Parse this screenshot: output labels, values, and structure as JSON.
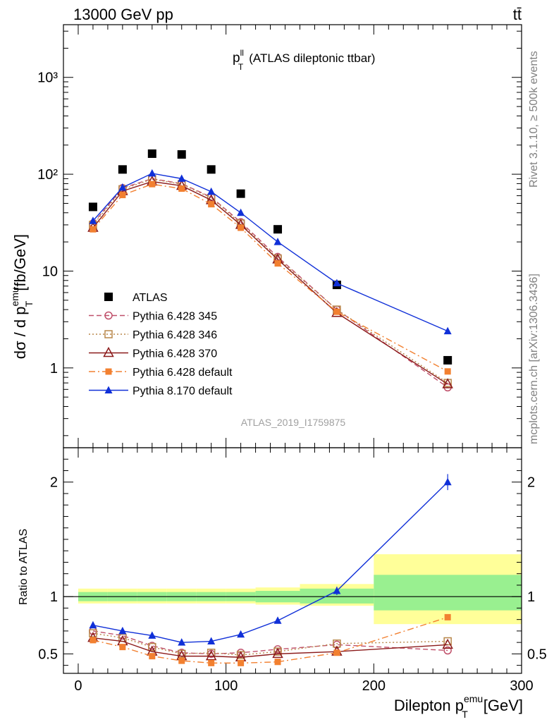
{
  "header": {
    "left": "13000 GeV pp",
    "right": "tt̄"
  },
  "side_labels": {
    "rivet": "Rivet 3.1.10, ≥ 500k events",
    "source": "mcplots.cern.ch [arXiv:1306.3436]"
  },
  "analysis_id": "ATLAS_2019_I1759875",
  "colors": {
    "atlas": "#000000",
    "p345": "#c0506a",
    "p346": "#b8874a",
    "p370": "#8b1a1a",
    "pdef": "#f28030",
    "p8": "#1030d8",
    "band_inner": "#99f090",
    "band_outer": "#ffff99"
  },
  "chart_data": [
    {
      "type": "line",
      "panel": "main",
      "title_main": "p",
      "title_sup": "ll",
      "title_sub": "T",
      "title_rest": "(ATLAS dileptonic ttbar)",
      "ylabel": "dσ / d p",
      "ylabel_sup": "emu",
      "ylabel_sub": "T",
      "ylabel_unit": "[fb/GeV]",
      "yscale": "log",
      "xlim": [
        -10,
        300
      ],
      "ylim": [
        0.15,
        3500
      ],
      "y_tick_labels": [
        "1",
        "10",
        "10²",
        "10³"
      ],
      "x": [
        10,
        30,
        50,
        70,
        90,
        110,
        135,
        175,
        250
      ],
      "series": [
        {
          "key": "atlas",
          "name": "ATLAS",
          "marker": "square",
          "line": "none",
          "values": [
            46,
            112,
            163,
            160,
            112,
            63,
            27,
            7.2,
            1.2
          ]
        },
        {
          "key": "p345",
          "name": "Pythia 6.428 345",
          "marker": "circle-open",
          "line": "dashed",
          "values": [
            31,
            72,
            90,
            80,
            58,
            32,
            14,
            4.0,
            0.63
          ]
        },
        {
          "key": "p346",
          "name": "Pythia 6.428 346",
          "marker": "square-open",
          "line": "dotted",
          "values": [
            30,
            70,
            89,
            79,
            57,
            31,
            13.5,
            4.0,
            0.7
          ]
        },
        {
          "key": "p370",
          "name": "Pythia 6.428 370",
          "marker": "triangle-open",
          "line": "solid",
          "values": [
            28,
            67,
            84,
            76,
            54,
            30,
            13.2,
            3.7,
            0.68
          ]
        },
        {
          "key": "pdef",
          "name": "Pythia 6.428 default",
          "marker": "square-small",
          "line": "dashdot",
          "values": [
            27,
            61,
            79,
            71,
            49,
            28,
            12,
            3.8,
            0.92
          ]
        },
        {
          "key": "p8",
          "name": "Pythia 8.170 default",
          "marker": "triangle",
          "line": "solid",
          "values": [
            33,
            73,
            102,
            90,
            66,
            40,
            20,
            7.5,
            2.4
          ]
        }
      ]
    },
    {
      "type": "line",
      "panel": "ratio",
      "ylabel": "Ratio to ATLAS",
      "xlabel": "Dilepton p",
      "xlabel_sup": "emu",
      "xlabel_sub": "T",
      "xlabel_unit": "[GeV]",
      "xlim": [
        -10,
        300
      ],
      "ylim": [
        0.33,
        2.3
      ],
      "x_ticks": [
        0,
        100,
        200,
        300
      ],
      "y_ticks": [
        0.5,
        1,
        2
      ],
      "bands": [
        {
          "x0": 0,
          "x1": 20,
          "inner": [
            0.96,
            1.04
          ],
          "outer": [
            0.94,
            1.07
          ]
        },
        {
          "x0": 20,
          "x1": 40,
          "inner": [
            0.96,
            1.04
          ],
          "outer": [
            0.94,
            1.07
          ]
        },
        {
          "x0": 40,
          "x1": 60,
          "inner": [
            0.96,
            1.04
          ],
          "outer": [
            0.94,
            1.07
          ]
        },
        {
          "x0": 60,
          "x1": 80,
          "inner": [
            0.96,
            1.04
          ],
          "outer": [
            0.94,
            1.07
          ]
        },
        {
          "x0": 80,
          "x1": 100,
          "inner": [
            0.96,
            1.04
          ],
          "outer": [
            0.94,
            1.07
          ]
        },
        {
          "x0": 100,
          "x1": 120,
          "inner": [
            0.96,
            1.04
          ],
          "outer": [
            0.94,
            1.07
          ]
        },
        {
          "x0": 120,
          "x1": 150,
          "inner": [
            0.95,
            1.05
          ],
          "outer": [
            0.93,
            1.08
          ]
        },
        {
          "x0": 150,
          "x1": 200,
          "inner": [
            0.94,
            1.07
          ],
          "outer": [
            0.92,
            1.11
          ]
        },
        {
          "x0": 200,
          "x1": 300,
          "inner": [
            0.88,
            1.19
          ],
          "outer": [
            0.76,
            1.37
          ]
        }
      ],
      "x": [
        10,
        30,
        50,
        70,
        90,
        110,
        135,
        175,
        250
      ],
      "series": [
        {
          "key": "p345",
          "values": [
            0.7,
            0.66,
            0.57,
            0.51,
            0.5,
            0.51,
            0.54,
            0.58,
            0.53
          ]
        },
        {
          "key": "p346",
          "values": [
            0.68,
            0.64,
            0.56,
            0.5,
            0.51,
            0.49,
            0.52,
            0.59,
            0.61
          ]
        },
        {
          "key": "p370",
          "values": [
            0.64,
            0.61,
            0.52,
            0.48,
            0.48,
            0.47,
            0.5,
            0.52,
            0.58
          ]
        },
        {
          "key": "pdef",
          "values": [
            0.62,
            0.56,
            0.48,
            0.44,
            0.42,
            0.42,
            0.43,
            0.51,
            0.82
          ]
        },
        {
          "key": "p8",
          "values": [
            0.75,
            0.7,
            0.66,
            0.6,
            0.61,
            0.67,
            0.79,
            1.05,
            2.0
          ]
        }
      ]
    }
  ]
}
